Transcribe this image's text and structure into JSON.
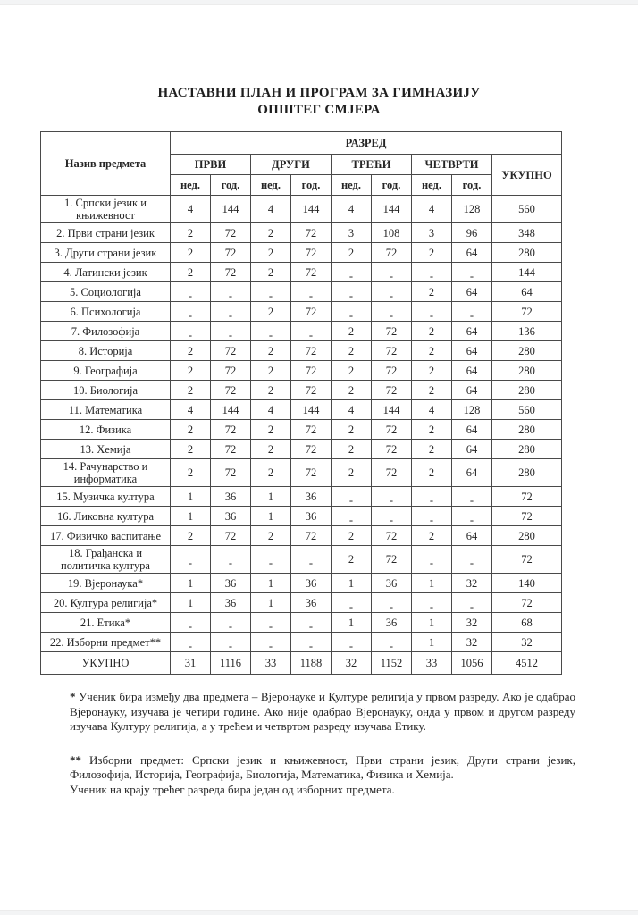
{
  "page": {
    "title_line1": "НАСТАВНИ ПЛАН И ПРОГРАМ ЗА ГИМНАЗИЈУ",
    "title_line2": "ОПШТЕГ СМЈЕРА"
  },
  "table": {
    "subject_header": "Назив предмета",
    "grade_header": "РАЗРЕД",
    "grades": [
      "ПРВИ",
      "ДРУГИ",
      "ТРЕЋИ",
      "ЧЕТВРТИ"
    ],
    "week_label": "нед.",
    "year_label": "год.",
    "total_label": "УКУПНО",
    "rows": [
      {
        "subject": "1. Српски језик и књижевност",
        "values": [
          "4",
          "144",
          "4",
          "144",
          "4",
          "144",
          "4",
          "128"
        ],
        "total": "560"
      },
      {
        "subject": "2. Први страни језик",
        "values": [
          "2",
          "72",
          "2",
          "72",
          "3",
          "108",
          "3",
          "96"
        ],
        "total": "348"
      },
      {
        "subject": "3. Други страни језик",
        "values": [
          "2",
          "72",
          "2",
          "72",
          "2",
          "72",
          "2",
          "64"
        ],
        "total": "280"
      },
      {
        "subject": "4. Латински језик",
        "values": [
          "2",
          "72",
          "2",
          "72",
          "-",
          "-",
          "-",
          "-"
        ],
        "total": "144"
      },
      {
        "subject": "5. Социологија",
        "values": [
          "-",
          "-",
          "-",
          "-",
          "-",
          "-",
          "2",
          "64"
        ],
        "total": "64"
      },
      {
        "subject": "6. Психологија",
        "values": [
          "-",
          "-",
          "2",
          "72",
          "-",
          "-",
          "-",
          "-"
        ],
        "total": "72"
      },
      {
        "subject": "7. Филозофија",
        "values": [
          "-",
          "-",
          "-",
          "-",
          "2",
          "72",
          "2",
          "64"
        ],
        "total": "136"
      },
      {
        "subject": "8. Историја",
        "values": [
          "2",
          "72",
          "2",
          "72",
          "2",
          "72",
          "2",
          "64"
        ],
        "total": "280"
      },
      {
        "subject": "9. Географија",
        "values": [
          "2",
          "72",
          "2",
          "72",
          "2",
          "72",
          "2",
          "64"
        ],
        "total": "280"
      },
      {
        "subject": "10. Биологија",
        "values": [
          "2",
          "72",
          "2",
          "72",
          "2",
          "72",
          "2",
          "64"
        ],
        "total": "280"
      },
      {
        "subject": "11. Математика",
        "values": [
          "4",
          "144",
          "4",
          "144",
          "4",
          "144",
          "4",
          "128"
        ],
        "total": "560"
      },
      {
        "subject": "12. Физика",
        "values": [
          "2",
          "72",
          "2",
          "72",
          "2",
          "72",
          "2",
          "64"
        ],
        "total": "280"
      },
      {
        "subject": "13. Хемија",
        "values": [
          "2",
          "72",
          "2",
          "72",
          "2",
          "72",
          "2",
          "64"
        ],
        "total": "280"
      },
      {
        "subject": "14. Рачунарство и информатика",
        "values": [
          "2",
          "72",
          "2",
          "72",
          "2",
          "72",
          "2",
          "64"
        ],
        "total": "280"
      },
      {
        "subject": "15. Музичка култура",
        "values": [
          "1",
          "36",
          "1",
          "36",
          "-",
          "-",
          "-",
          "-"
        ],
        "total": "72"
      },
      {
        "subject": "16. Ликовна култура",
        "values": [
          "1",
          "36",
          "1",
          "36",
          "-",
          "-",
          "-",
          "-"
        ],
        "total": "72"
      },
      {
        "subject": "17. Физичко васпитање",
        "values": [
          "2",
          "72",
          "2",
          "72",
          "2",
          "72",
          "2",
          "64"
        ],
        "total": "280"
      },
      {
        "subject": "18. Грађанска и политичка култура",
        "values": [
          "-",
          "-",
          "-",
          "-",
          "2",
          "72",
          "-",
          "-"
        ],
        "total": "72"
      },
      {
        "subject": "19. Вјеронаука*",
        "values": [
          "1",
          "36",
          "1",
          "36",
          "1",
          "36",
          "1",
          "32"
        ],
        "total": "140"
      },
      {
        "subject": "20. Култура религија*",
        "values": [
          "1",
          "36",
          "1",
          "36",
          "-",
          "-",
          "-",
          "-"
        ],
        "total": "72"
      },
      {
        "subject": "21. Етика*",
        "values": [
          "-",
          "-",
          "-",
          "-",
          "1",
          "36",
          "1",
          "32"
        ],
        "total": "68"
      },
      {
        "subject": "22. Изборни предмет**",
        "values": [
          "-",
          "-",
          "-",
          "-",
          "-",
          "-",
          "1",
          "32"
        ],
        "total": "32"
      }
    ],
    "total_row": {
      "label": "УКУПНО",
      "values": [
        "31",
        "1116",
        "33",
        "1188",
        "32",
        "1152",
        "33",
        "1056"
      ],
      "total": "4512"
    }
  },
  "footnotes": {
    "note1_marker": "*",
    "note1_text": "Ученик бира између два предмета – Вјеронауке и Културе религија у првом разреду. Ако је одабрао Вјеронауку, изучава је четири године. Ако није одабрао Вјеронауку, онда у првом и другом разреду изучава Културу религија, а у трећем и четвртом разреду изучава Етику.",
    "note2_marker": "**",
    "note2_text": "Изборни предмет: Српски језик и књижевност, Први страни језик, Други страни језик, Филозофија, Историја, Географија, Биологија, Математика, Физика и Хемија.",
    "note2_line2": "Ученик на крају трећег разреда бира један од изборних предмета."
  }
}
